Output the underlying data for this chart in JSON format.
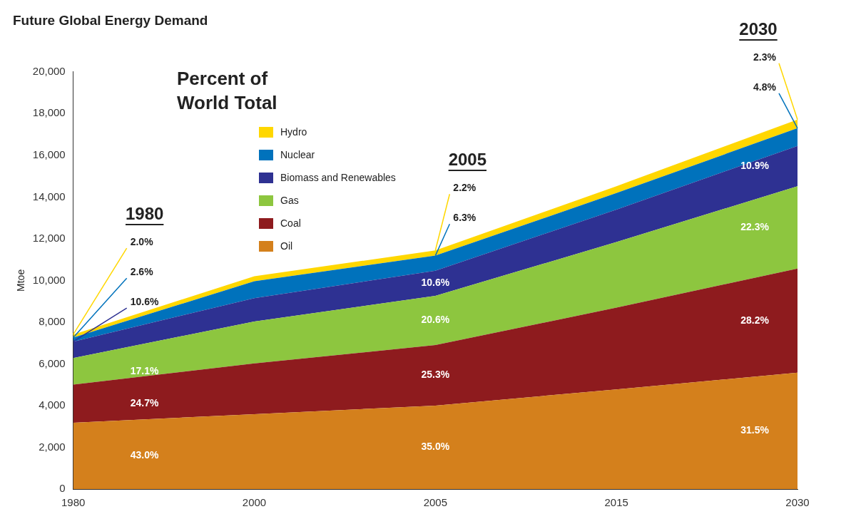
{
  "chart_data": {
    "type": "area",
    "title": "Future Global Energy Demand",
    "ylabel": "Mtoe",
    "legend_title": "Percent of World Total",
    "legend": "top left",
    "stacked": true,
    "grid": false,
    "categories": [
      "1980",
      "2000",
      "2005",
      "2015",
      "2030"
    ],
    "ylim": [
      0,
      20000
    ],
    "yticks": [
      {
        "value": 0,
        "label": "0"
      },
      {
        "value": 2000,
        "label": "2,000"
      },
      {
        "value": 4000,
        "label": "4,000"
      },
      {
        "value": 6000,
        "label": "6,000"
      },
      {
        "value": 8000,
        "label": "8,000"
      },
      {
        "value": 10000,
        "label": "10,000"
      },
      {
        "value": 12000,
        "label": "12,000"
      },
      {
        "value": 14000,
        "label": "14,000"
      },
      {
        "value": 16000,
        "label": "16,000"
      },
      {
        "value": 18000,
        "label": "18,000"
      },
      {
        "value": 20000,
        "label": "20,000"
      }
    ],
    "series": [
      {
        "name": "Oil",
        "color": "#d4801c",
        "values": [
          3180,
          3590,
          4000,
          4780,
          5580
        ]
      },
      {
        "name": "Coal",
        "color": "#8e1b1e",
        "values": [
          1830,
          2430,
          2900,
          3920,
          4990
        ]
      },
      {
        "name": "Gas",
        "color": "#8dc63f",
        "values": [
          1270,
          2010,
          2360,
          3140,
          3950
        ]
      },
      {
        "name": "Biomass and Renewables",
        "color": "#2e3192",
        "values": [
          790,
          1120,
          1210,
          1560,
          1930
        ]
      },
      {
        "name": "Nuclear",
        "color": "#0072bc",
        "values": [
          190,
          810,
          720,
          790,
          850
        ]
      },
      {
        "name": "Hydro",
        "color": "#ffd700",
        "values": [
          150,
          240,
          250,
          330,
          410
        ]
      }
    ],
    "annotations": [
      "43.0%",
      "24.7%",
      "17.1%",
      {
        "text": "10.6%",
        "x": "1980",
        "y": 7070
      },
      {
        "text": "2.6%",
        "x": "1980",
        "y": 7260
      },
      {
        "text": "2.0%",
        "x": "1980",
        "y": 7410
      },
      "35.0%",
      "25.3%",
      "20.6%",
      "10.6%",
      {
        "text": "6.3%",
        "x": "2005",
        "y": 11190
      },
      {
        "text": "2.2%",
        "x": "2005",
        "y": 11440
      },
      "31.5%",
      "28.2%",
      "22.3%",
      "10.9%",
      {
        "text": "4.8%",
        "x": "2030",
        "y": 17300
      },
      {
        "text": "2.3%",
        "x": "2030",
        "y": 17710
      },
      "1980",
      "2005",
      "2030"
    ]
  }
}
